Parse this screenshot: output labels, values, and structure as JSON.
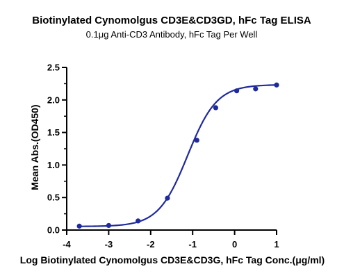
{
  "chart_data": {
    "type": "scatter",
    "title": "Biotinylated Cynomolgus CD3E&CD3GD, hFc Tag ELISA",
    "subtitle": "0.1μg Anti-CD3 Antibody, hFc Tag Per Well",
    "xlabel": "Log Biotinylated Cynomolgus CD3E&CD3G, hFc Tag Conc.(μg/ml)",
    "ylabel": "Mean Abs.(OD450)",
    "xlim": [
      -4,
      1
    ],
    "ylim": [
      0,
      2.5
    ],
    "x_ticks": [
      "-4",
      "-3",
      "-2",
      "-1",
      "0",
      "1"
    ],
    "y_ticks": [
      "0.0",
      "0.5",
      "1.0",
      "1.5",
      "2.0",
      "2.5"
    ],
    "grid": false,
    "color": "#1f2a9c",
    "series": [
      {
        "x": [
          -3.7,
          -3.0,
          -2.3,
          -1.6,
          -0.9,
          -0.45,
          0.05,
          0.5,
          1.0
        ],
        "y": [
          0.06,
          0.07,
          0.14,
          0.49,
          1.38,
          1.88,
          2.14,
          2.17,
          2.23
        ]
      }
    ],
    "fit_curve": {
      "bottom": 0.055,
      "top": 2.235,
      "logEC50": -1.12,
      "hill": 1.25
    }
  }
}
